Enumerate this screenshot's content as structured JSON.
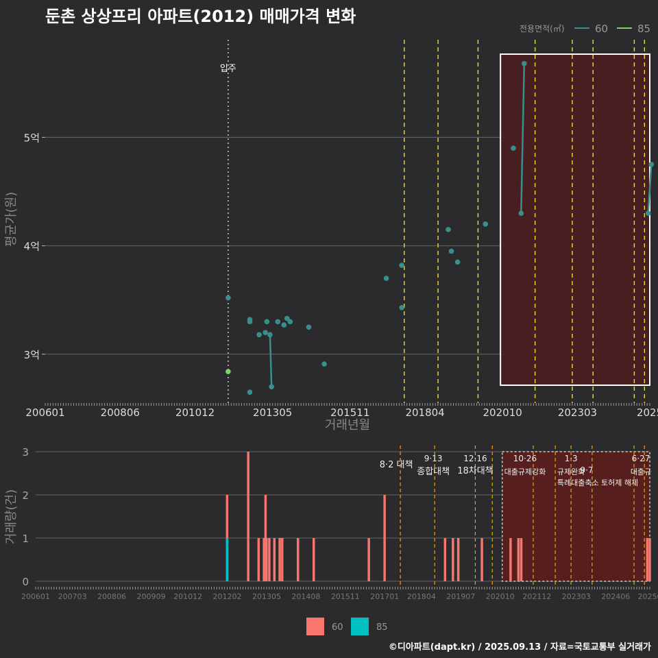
{
  "title": "둔촌 상상프리 아파트(2012) 매매가격 변화",
  "footer": "©디아파트(dapt.kr) / 2025.09.13 / 자료=국토교통부 실거래가",
  "colors": {
    "background": "#2b2b2d",
    "series60": "#3a8f8c",
    "series85": "#7fd36b",
    "bar60": "#f8766d",
    "bar85": "#00bfc4",
    "policy": "#e8d42a",
    "policy_bottom": "#e6a817",
    "highlight": "#4a1e20",
    "bar_highlight": "#5a1e1e"
  },
  "chart_data": [
    {
      "type": "line",
      "title": "둔촌 상상프리 아파트(2012) 매매가격 변화",
      "xlabel": "거래년월",
      "ylabel": "평균가(원)",
      "xlim": [
        2006.0,
        2025.5
      ],
      "ylim": [
        2.55,
        5.9
      ],
      "x_ticks": [
        2006.0,
        2008.4167,
        2010.8333,
        2013.3333,
        2015.8333,
        2018.25,
        2020.75,
        2023.1667,
        2025.5
      ],
      "x_tick_labels": [
        "200601",
        "200806",
        "201012",
        "201305",
        "201511",
        "201804",
        "202010",
        "202303",
        "2025"
      ],
      "y_ticks": [
        3,
        4,
        5
      ],
      "y_tick_labels": [
        "3억",
        "4억",
        "5억"
      ],
      "legend": {
        "title": "전용면적(㎡)",
        "entries": [
          "60",
          "85"
        ],
        "position": "top-right"
      },
      "annotations": [
        {
          "x": 2011.9,
          "text": "입주"
        }
      ],
      "policy_lines": [
        2017.58,
        2018.67,
        2019.96,
        2021.8,
        2023.0,
        2023.67,
        2025.0,
        2025.33
      ],
      "highlight_range": [
        2020.75,
        2025.5
      ],
      "series": [
        {
          "name": "60",
          "points": [
            [
              2011.9,
              3.52
            ],
            [
              2012.6,
              3.32
            ],
            [
              2012.6,
              3.3
            ],
            [
              2012.6,
              2.65
            ],
            [
              2012.9,
              3.18
            ],
            [
              2013.1,
              3.2
            ],
            [
              2013.15,
              3.3
            ],
            [
              2013.25,
              3.18
            ],
            [
              2013.3,
              2.7
            ],
            [
              2013.5,
              3.3
            ],
            [
              2013.7,
              3.27
            ],
            [
              2013.8,
              3.33
            ],
            [
              2013.9,
              3.3
            ],
            [
              2014.5,
              3.25
            ],
            [
              2015.0,
              2.91
            ],
            [
              2017.0,
              3.7
            ],
            [
              2017.5,
              3.82
            ],
            [
              2017.5,
              3.43
            ],
            [
              2019.0,
              4.15
            ],
            [
              2019.1,
              3.95
            ],
            [
              2019.3,
              3.85
            ],
            [
              2020.2,
              4.2
            ],
            [
              2021.1,
              4.9
            ],
            [
              2021.35,
              4.3
            ],
            [
              2021.45,
              5.68
            ],
            [
              2025.45,
              4.3
            ],
            [
              2025.55,
              4.75
            ]
          ],
          "lines": [
            [
              [
                2013.25,
                3.18
              ],
              [
                2013.3,
                2.7
              ]
            ],
            [
              [
                2021.35,
                4.3
              ],
              [
                2021.45,
                5.68
              ]
            ],
            [
              [
                2025.45,
                4.3
              ],
              [
                2025.55,
                4.75
              ]
            ]
          ]
        },
        {
          "name": "85",
          "points": [
            [
              2011.9,
              2.84
            ]
          ]
        }
      ]
    },
    {
      "type": "bar",
      "ylabel": "거래량(건)",
      "xlim": [
        2006.0,
        2025.5
      ],
      "ylim": [
        0,
        3
      ],
      "y_ticks": [
        0,
        1,
        2,
        3
      ],
      "x_ticks": [
        2006.0,
        2007.1667,
        2008.4167,
        2009.6667,
        2010.8333,
        2012.0833,
        2013.3333,
        2014.5833,
        2015.8333,
        2017.0833,
        2018.25,
        2019.5,
        2020.75,
        2021.9167,
        2023.1667,
        2024.4167,
        2025.5
      ],
      "x_tick_labels": [
        "200601",
        "200703",
        "200806",
        "200909",
        "201012",
        "201202",
        "201305",
        "201408",
        "201511",
        "201701",
        "201804",
        "201907",
        "202010",
        "202112",
        "202303",
        "202406",
        "20250"
      ],
      "legend": {
        "entries": [
          "60",
          "85"
        ],
        "position": "bottom"
      },
      "highlight_range": [
        2020.75,
        2025.5
      ],
      "policy_lines": [
        2017.58,
        2018.67,
        2019.96,
        2020.5,
        2021.8,
        2022.5,
        2023.0,
        2023.67,
        2025.0,
        2025.33
      ],
      "policy_labels": [
        {
          "x": 2017.58,
          "date": "",
          "text": "8·2 대책"
        },
        {
          "x": 2018.67,
          "date": "9·13",
          "text": "종합대책"
        },
        {
          "x": 2019.96,
          "date": "12·16",
          "text": "18차대책"
        },
        {
          "x": 2021.8,
          "date": "10·26",
          "text": "대출규제강화"
        },
        {
          "x": 2023.0,
          "date": "1·3",
          "text": "규제완화"
        },
        {
          "x": 2023.67,
          "date": "9·7",
          "text": ""
        },
        {
          "x": 2023.67,
          "date": "",
          "text": "특례대출축소 토허제 해제"
        },
        {
          "x": 2025.33,
          "date": "6·27",
          "text": "대출규"
        }
      ],
      "series": [
        {
          "name": "60",
          "bars": [
            [
              2012.08,
              2
            ],
            [
              2012.75,
              3
            ],
            [
              2013.08,
              1
            ],
            [
              2013.25,
              1
            ],
            [
              2013.3,
              2
            ],
            [
              2013.33,
              1
            ],
            [
              2013.42,
              1
            ],
            [
              2013.58,
              1
            ],
            [
              2013.75,
              1
            ],
            [
              2013.83,
              1
            ],
            [
              2014.33,
              1
            ],
            [
              2014.83,
              1
            ],
            [
              2016.58,
              1
            ],
            [
              2017.08,
              2
            ],
            [
              2019.0,
              1
            ],
            [
              2019.25,
              1
            ],
            [
              2019.42,
              1
            ],
            [
              2020.17,
              1
            ],
            [
              2021.08,
              1
            ],
            [
              2021.33,
              1
            ],
            [
              2021.42,
              1
            ],
            [
              2025.42,
              1
            ],
            [
              2025.5,
              1
            ]
          ]
        },
        {
          "name": "85",
          "bars": [
            [
              2012.08,
              1
            ]
          ]
        }
      ]
    }
  ]
}
